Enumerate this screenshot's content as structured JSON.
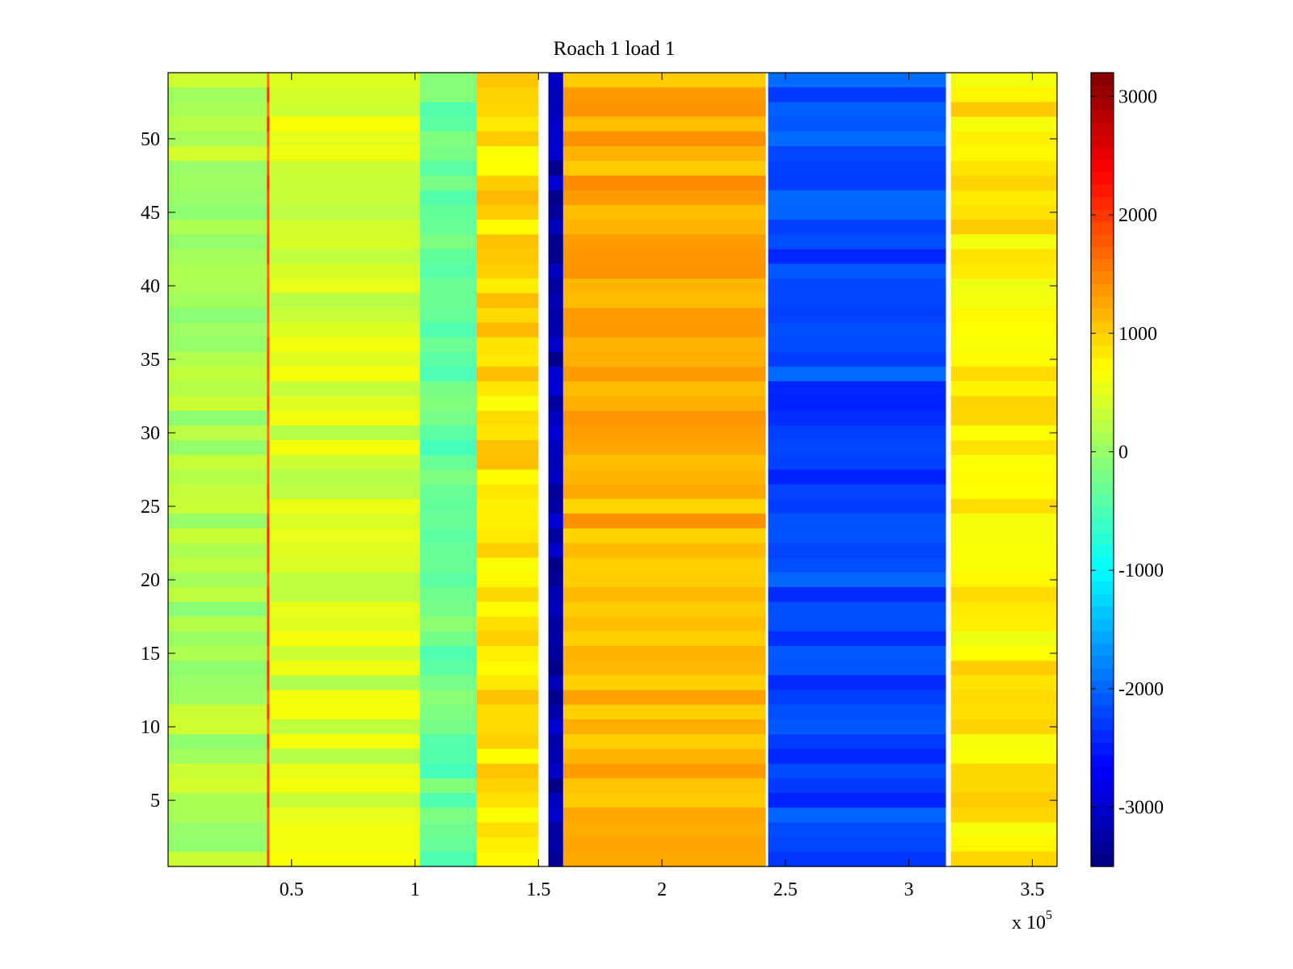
{
  "chart_data": {
    "type": "heatmap",
    "title": "Roach 1 load 1",
    "xlabel": "",
    "ylabel": "",
    "x_exponent_label": {
      "base": "x 10",
      "exponent": "5"
    },
    "xlim": [
      0,
      3.6
    ],
    "ylim": [
      0.5,
      54.5
    ],
    "x_ticks": [
      0.5,
      1,
      1.5,
      2,
      2.5,
      3,
      3.5
    ],
    "x_tick_labels": [
      "0.5",
      "1",
      "1.5",
      "2",
      "2.5",
      "3",
      "3.5"
    ],
    "y_ticks": [
      5,
      10,
      15,
      20,
      25,
      30,
      35,
      40,
      45,
      50
    ],
    "y_tick_labels": [
      "5",
      "10",
      "15",
      "20",
      "25",
      "30",
      "35",
      "40",
      "45",
      "50"
    ],
    "rows": 54,
    "colorbar": {
      "colormap": "jet",
      "clim": [
        -3500,
        3200
      ],
      "ticks": [
        -3000,
        -2000,
        -1000,
        0,
        1000,
        2000,
        3000
      ],
      "tick_labels": [
        "-3000",
        "-2000",
        "-1000",
        "0",
        "1000",
        "2000",
        "3000"
      ]
    },
    "segments": [
      {
        "x_range": [
          0,
          0.4
        ],
        "mean_value": 150
      },
      {
        "x_range": [
          0.4,
          0.41
        ],
        "mean_value": 1800
      },
      {
        "x_range": [
          0.41,
          1.02
        ],
        "mean_value": 400
      },
      {
        "x_range": [
          1.02,
          1.25
        ],
        "mean_value": -300
      },
      {
        "x_range": [
          1.25,
          1.5
        ],
        "mean_value": 900
      },
      {
        "x_range": [
          1.54,
          1.6
        ],
        "mean_value": -3200
      },
      {
        "x_range": [
          1.6,
          2.42
        ],
        "mean_value": 1200
      },
      {
        "x_range": [
          2.43,
          3.15
        ],
        "mean_value": -2200
      },
      {
        "x_range": [
          3.17,
          3.6
        ],
        "mean_value": 800
      }
    ]
  }
}
